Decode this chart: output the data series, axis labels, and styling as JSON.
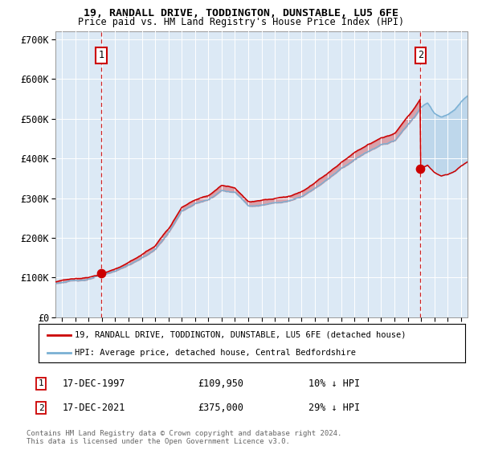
{
  "title1": "19, RANDALL DRIVE, TODDINGTON, DUNSTABLE, LU5 6FE",
  "title2": "Price paid vs. HM Land Registry's House Price Index (HPI)",
  "legend_line1": "19, RANDALL DRIVE, TODDINGTON, DUNSTABLE, LU5 6FE (detached house)",
  "legend_line2": "HPI: Average price, detached house, Central Bedfordshire",
  "annotation1_date": "17-DEC-1997",
  "annotation1_price": "£109,950",
  "annotation1_hpi": "10% ↓ HPI",
  "annotation2_date": "17-DEC-2021",
  "annotation2_price": "£375,000",
  "annotation2_hpi": "29% ↓ HPI",
  "footnote": "Contains HM Land Registry data © Crown copyright and database right 2024.\nThis data is licensed under the Open Government Licence v3.0.",
  "background_color": "#dce9f5",
  "red_color": "#cc0000",
  "blue_color": "#7ab0d4",
  "ylim": [
    0,
    720000
  ],
  "yticks": [
    0,
    100000,
    200000,
    300000,
    400000,
    500000,
    600000,
    700000
  ],
  "ytick_labels": [
    "£0",
    "£100K",
    "£200K",
    "£300K",
    "£400K",
    "£500K",
    "£600K",
    "£700K"
  ],
  "sale1_year": 1997.96,
  "sale1_price": 109950,
  "sale2_year": 2021.96,
  "sale2_price": 375000
}
